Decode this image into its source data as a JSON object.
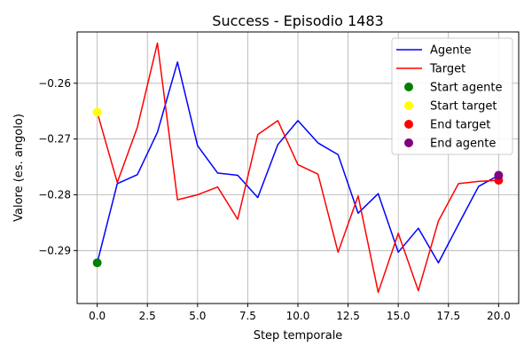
{
  "chart_data": {
    "type": "line",
    "title": "Success - Episodio 1483",
    "xlabel": "Step temporale",
    "ylabel": "Valore (es. angolo)",
    "xlim": [
      -1.0,
      21.0
    ],
    "ylim": [
      -0.2995,
      -0.2508
    ],
    "x_ticks": [
      0.0,
      2.5,
      5.0,
      7.5,
      10.0,
      12.5,
      15.0,
      17.5,
      20.0
    ],
    "x_tick_labels": [
      "0.0",
      "2.5",
      "5.0",
      "7.5",
      "10.0",
      "12.5",
      "15.0",
      "17.5",
      "20.0"
    ],
    "y_ticks": [
      -0.29,
      -0.28,
      -0.27,
      -0.26
    ],
    "y_tick_labels": [
      "−0.29",
      "−0.28",
      "−0.27",
      "−0.26"
    ],
    "grid": true,
    "legend_position": "top-right",
    "x": [
      0,
      1,
      2,
      3,
      4,
      5,
      6,
      7,
      8,
      9,
      10,
      11,
      12,
      13,
      14,
      15,
      16,
      17,
      18,
      19,
      20
    ],
    "series": [
      {
        "name": "Agente",
        "color": "#0000ff",
        "values": [
          -0.2922,
          -0.278,
          -0.2764,
          -0.2688,
          -0.2562,
          -0.2712,
          -0.2761,
          -0.2765,
          -0.2805,
          -0.271,
          -0.2667,
          -0.2707,
          -0.2728,
          -0.2833,
          -0.2798,
          -0.2903,
          -0.286,
          -0.2922,
          -0.2853,
          -0.2785,
          -0.2765
        ]
      },
      {
        "name": "Target",
        "color": "#ff0000",
        "values": [
          -0.2652,
          -0.2778,
          -0.2679,
          -0.2528,
          -0.2809,
          -0.28,
          -0.2786,
          -0.2844,
          -0.2692,
          -0.2667,
          -0.2746,
          -0.2763,
          -0.2903,
          -0.2802,
          -0.2975,
          -0.2869,
          -0.2972,
          -0.2847,
          -0.278,
          -0.2776,
          -0.2774
        ]
      }
    ],
    "markers": [
      {
        "name": "Start agente",
        "color": "#008000",
        "x": 0,
        "y": -0.2922
      },
      {
        "name": "Start target",
        "color": "#ffff00",
        "x": 0,
        "y": -0.2652
      },
      {
        "name": "End target",
        "color": "#ff0000",
        "x": 20,
        "y": -0.2774
      },
      {
        "name": "End agente",
        "color": "#800080",
        "x": 20,
        "y": -0.2765
      }
    ]
  }
}
